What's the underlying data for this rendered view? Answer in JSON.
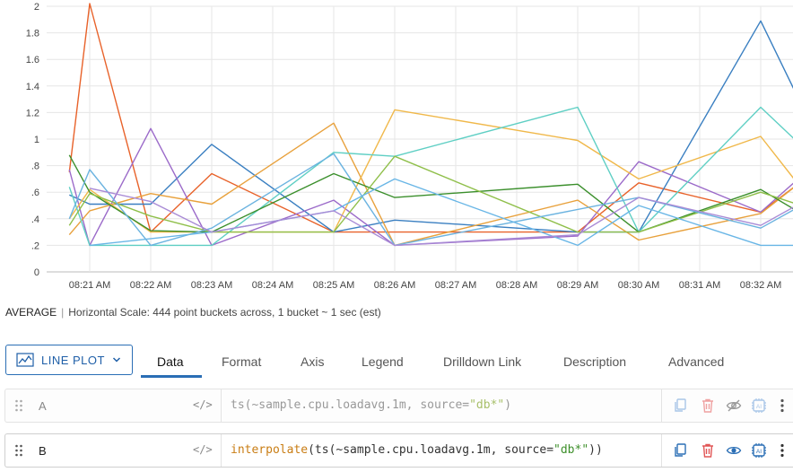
{
  "chart_data": {
    "type": "line",
    "x": [
      "08:20:40",
      "08:21",
      "08:22",
      "08:23",
      "08:24",
      "08:25",
      "08:26",
      "08:27",
      "08:28",
      "08:29",
      "08:30",
      "08:31",
      "08:32",
      "08:32:40"
    ],
    "xticks": [
      "08:21 AM",
      "08:22 AM",
      "08:23 AM",
      "08:24 AM",
      "08:25 AM",
      "08:26 AM",
      "08:27 AM",
      "08:28 AM",
      "08:29 AM",
      "08:30 AM",
      "08:31 AM",
      "08:32 AM"
    ],
    "yticks": [
      "0",
      ".2",
      ".4",
      ".6",
      ".8",
      "1",
      "1.2",
      "1.4",
      "1.6",
      "1.8",
      "2"
    ],
    "ylim": [
      0,
      2
    ],
    "grid": true,
    "series": [
      {
        "color": "#e8622a",
        "points": [
          [
            "08:20:40",
            0.75
          ],
          [
            "08:21",
            2.02
          ],
          [
            "08:22",
            0.3
          ],
          [
            "08:23",
            0.74
          ],
          [
            "08:25",
            0.3
          ],
          [
            "08:29",
            0.3
          ],
          [
            "08:30",
            0.67
          ],
          [
            "08:32",
            0.45
          ],
          [
            "08:32:40",
            0.68
          ]
        ]
      },
      {
        "color": "#3a7fc1",
        "points": [
          [
            "08:20:40",
            0.58
          ],
          [
            "08:21",
            0.51
          ],
          [
            "08:22",
            0.51
          ],
          [
            "08:23",
            0.96
          ],
          [
            "08:25",
            0.3
          ],
          [
            "08:26",
            0.39
          ],
          [
            "08:29",
            0.3
          ],
          [
            "08:30",
            0.3
          ],
          [
            "08:32",
            1.89
          ],
          [
            "08:32:40",
            1.26
          ]
        ]
      },
      {
        "color": "#9b6ac9",
        "points": [
          [
            "08:20:40",
            0.77
          ],
          [
            "08:21",
            0.2
          ],
          [
            "08:22",
            1.08
          ],
          [
            "08:23",
            0.2
          ],
          [
            "08:25",
            0.54
          ],
          [
            "08:26",
            0.2
          ],
          [
            "08:29",
            0.27
          ],
          [
            "08:30",
            0.83
          ],
          [
            "08:32",
            0.45
          ],
          [
            "08:32:40",
            0.72
          ]
        ]
      },
      {
        "color": "#e8a13c",
        "points": [
          [
            "08:20:40",
            0.28
          ],
          [
            "08:21",
            0.46
          ],
          [
            "08:22",
            0.59
          ],
          [
            "08:23",
            0.51
          ],
          [
            "08:25",
            1.12
          ],
          [
            "08:26",
            0.2
          ],
          [
            "08:29",
            0.54
          ],
          [
            "08:30",
            0.24
          ],
          [
            "08:32",
            0.44
          ],
          [
            "08:32:40",
            0.68
          ]
        ]
      },
      {
        "color": "#f0b84a",
        "points": [
          [
            "08:20:40",
            0.4
          ],
          [
            "08:21",
            0.62
          ],
          [
            "08:22",
            0.3
          ],
          [
            "08:23",
            0.3
          ],
          [
            "08:25",
            0.3
          ],
          [
            "08:26",
            1.22
          ],
          [
            "08:29",
            0.99
          ],
          [
            "08:30",
            0.7
          ],
          [
            "08:32",
            1.02
          ],
          [
            "08:32:40",
            0.63
          ]
        ]
      },
      {
        "color": "#5fcfc4",
        "points": [
          [
            "08:20:40",
            0.64
          ],
          [
            "08:21",
            0.2
          ],
          [
            "08:23",
            0.2
          ],
          [
            "08:25",
            0.9
          ],
          [
            "08:26",
            0.87
          ],
          [
            "08:29",
            1.24
          ],
          [
            "08:30",
            0.3
          ],
          [
            "08:32",
            1.24
          ],
          [
            "08:32:40",
            0.95
          ]
        ]
      },
      {
        "color": "#3b8f2c",
        "points": [
          [
            "08:20:40",
            0.88
          ],
          [
            "08:21",
            0.6
          ],
          [
            "08:22",
            0.31
          ],
          [
            "08:23",
            0.3
          ],
          [
            "08:25",
            0.74
          ],
          [
            "08:26",
            0.56
          ],
          [
            "08:29",
            0.66
          ],
          [
            "08:30",
            0.3
          ],
          [
            "08:32",
            0.62
          ],
          [
            "08:32:40",
            0.44
          ]
        ]
      },
      {
        "color": "#8fbf4a",
        "points": [
          [
            "08:20:40",
            0.35
          ],
          [
            "08:21",
            0.59
          ],
          [
            "08:22",
            0.42
          ],
          [
            "08:23",
            0.3
          ],
          [
            "08:25",
            0.3
          ],
          [
            "08:26",
            0.87
          ],
          [
            "08:29",
            0.3
          ],
          [
            "08:30",
            0.3
          ],
          [
            "08:32",
            0.6
          ],
          [
            "08:32:40",
            0.5
          ]
        ]
      },
      {
        "color": "#6bb3e0",
        "points": [
          [
            "08:20:40",
            0.4
          ],
          [
            "08:21",
            0.77
          ],
          [
            "08:22",
            0.2
          ],
          [
            "08:23",
            0.33
          ],
          [
            "08:25",
            0.89
          ],
          [
            "08:26",
            0.2
          ],
          [
            "08:30",
            0.56
          ],
          [
            "08:32",
            0.33
          ],
          [
            "08:32:40",
            0.5
          ]
        ]
      },
      {
        "color": "#69b6e6",
        "points": [
          [
            "08:21",
            0.2
          ],
          [
            "08:23",
            0.3
          ],
          [
            "08:25",
            0.46
          ],
          [
            "08:26",
            0.7
          ],
          [
            "08:29",
            0.2
          ],
          [
            "08:30",
            0.5
          ],
          [
            "08:32",
            0.2
          ],
          [
            "08:32:40",
            0.2
          ]
        ]
      },
      {
        "color": "#a98bd6",
        "points": [
          [
            "08:21",
            0.63
          ],
          [
            "08:22",
            0.53
          ],
          [
            "08:23",
            0.3
          ],
          [
            "08:25",
            0.46
          ],
          [
            "08:26",
            0.2
          ],
          [
            "08:29",
            0.28
          ],
          [
            "08:30",
            0.56
          ],
          [
            "08:32",
            0.35
          ],
          [
            "08:32:40",
            0.52
          ]
        ]
      }
    ]
  },
  "scale_bar": {
    "label": "AVERAGE",
    "separator": "|",
    "text": "Horizontal Scale: 444 point buckets across, 1 bucket ~ 1 sec (est)"
  },
  "toolbar": {
    "plot_type": "LINE PLOT",
    "tabs": [
      "Data",
      "Format",
      "Axis",
      "Legend",
      "Drilldown Link",
      "Description",
      "Advanced"
    ],
    "active_tab": "Data"
  },
  "queries": [
    {
      "name": "A",
      "code_icon": "</>",
      "parts": [
        {
          "t": "plain",
          "v": "ts(~sample.cpu.loadavg.1m, source="
        },
        {
          "t": "str",
          "v": "\"db*\""
        },
        {
          "t": "plain",
          "v": ")"
        }
      ],
      "visible": false
    },
    {
      "name": "B",
      "code_icon": "</>",
      "parts": [
        {
          "t": "fn",
          "v": "interpolate"
        },
        {
          "t": "plain",
          "v": "(ts(~sample.cpu.loadavg.1m, source="
        },
        {
          "t": "str",
          "v": "\"db*\""
        },
        {
          "t": "plain",
          "v": "))"
        }
      ],
      "visible": true
    }
  ],
  "icons": [
    "line-chart-icon",
    "chevron-down-icon",
    "drag-handle-icon",
    "copy-icon",
    "trash-icon",
    "eye-icon",
    "eye-off-icon",
    "ai-icon",
    "more-vertical-icon"
  ],
  "colors": {
    "accent": "#2a6eb5",
    "delete": "#e15656",
    "grid": "#e6e6e6"
  }
}
